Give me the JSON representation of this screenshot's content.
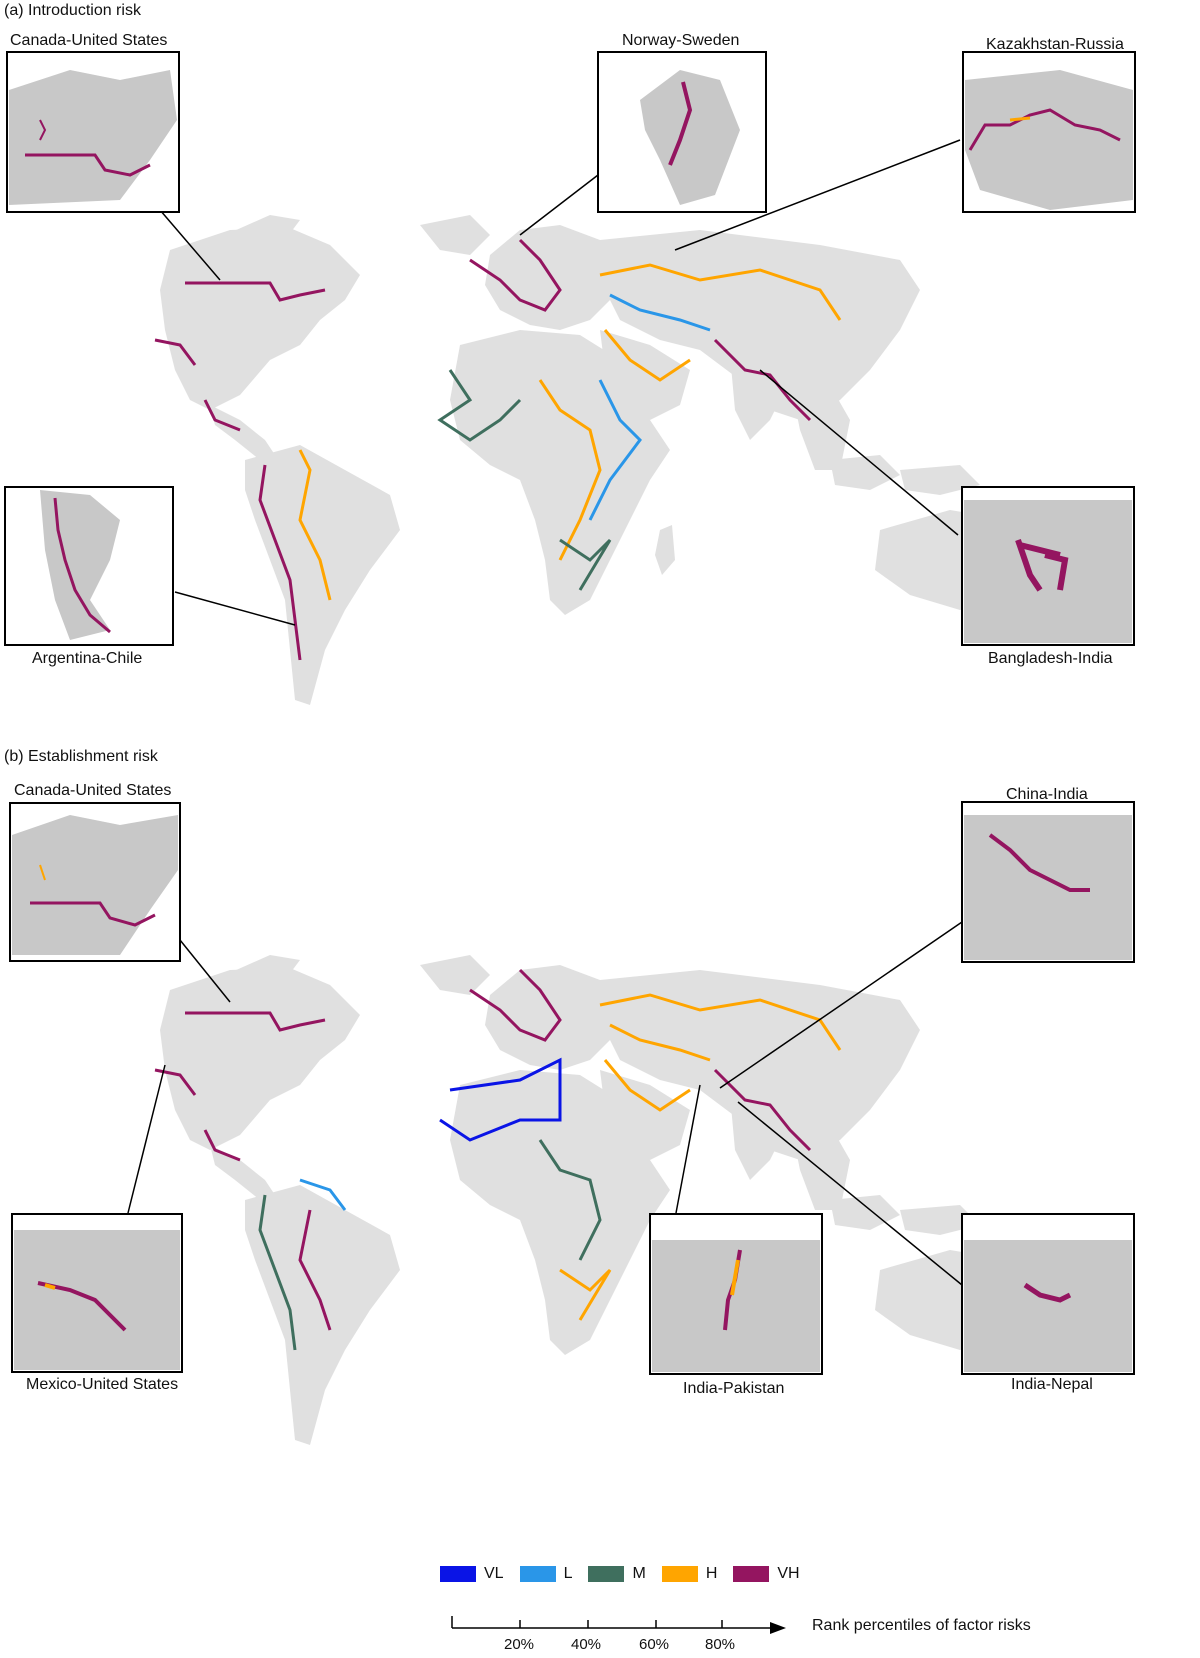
{
  "panels": {
    "a": {
      "title": "(a) Introduction risk",
      "insets": [
        "Canada-United States",
        "Norway-Sweden",
        "Kazakhstan-Russia",
        "Argentina-Chile",
        "Bangladesh-India"
      ]
    },
    "b": {
      "title": "(b) Establishment risk",
      "insets": [
        "Canada-United States",
        "China-India",
        "Mexico-United States",
        "India-Pakistan",
        "India-Nepal"
      ]
    }
  },
  "legend": {
    "items": [
      {
        "label": "VL",
        "color": "#0a14e6"
      },
      {
        "label": "L",
        "color": "#2a96e8"
      },
      {
        "label": "M",
        "color": "#3f6f5e"
      },
      {
        "label": "H",
        "color": "#ffa500"
      },
      {
        "label": "VH",
        "color": "#941560"
      }
    ]
  },
  "axis": {
    "title": "Rank percentiles of factor risks",
    "ticks": [
      "20%",
      "40%",
      "60%",
      "80%"
    ]
  },
  "colors": {
    "land": "#e0e0e0",
    "inset_land": "#c8c8c8",
    "inset_bg": "#ffffff",
    "frame": "#000000"
  }
}
